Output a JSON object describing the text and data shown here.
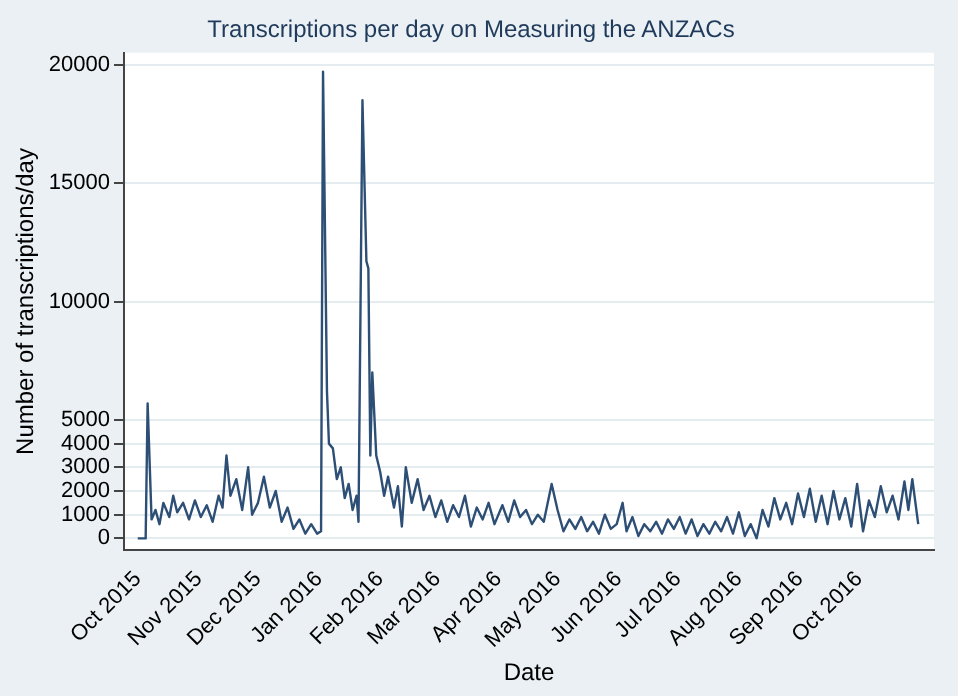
{
  "chart_data": {
    "type": "line",
    "title": "Transcriptions per day on Measuring the ANZACs",
    "xlabel": "Date",
    "ylabel": "Number of transcriptions/day",
    "x": [
      "2015-10-01",
      "2015-10-05",
      "2015-10-06",
      "2015-10-08",
      "2015-10-10",
      "2015-10-12",
      "2015-10-14",
      "2015-10-17",
      "2015-10-19",
      "2015-10-21",
      "2015-10-24",
      "2015-10-27",
      "2015-10-30",
      "2015-11-02",
      "2015-11-05",
      "2015-11-08",
      "2015-11-11",
      "2015-11-13",
      "2015-11-15",
      "2015-11-17",
      "2015-11-20",
      "2015-11-23",
      "2015-11-26",
      "2015-11-28",
      "2015-12-01",
      "2015-12-04",
      "2015-12-07",
      "2015-12-10",
      "2015-12-13",
      "2015-12-16",
      "2015-12-19",
      "2015-12-22",
      "2015-12-25",
      "2015-12-28",
      "2015-12-31",
      "2016-01-02",
      "2016-01-03",
      "2016-01-05",
      "2016-01-06",
      "2016-01-08",
      "2016-01-10",
      "2016-01-12",
      "2016-01-14",
      "2016-01-16",
      "2016-01-18",
      "2016-01-20",
      "2016-01-21",
      "2016-01-23",
      "2016-01-25",
      "2016-01-26",
      "2016-01-27",
      "2016-01-28",
      "2016-01-30",
      "2016-02-01",
      "2016-02-03",
      "2016-02-05",
      "2016-02-08",
      "2016-02-10",
      "2016-02-12",
      "2016-02-14",
      "2016-02-17",
      "2016-02-20",
      "2016-02-23",
      "2016-02-26",
      "2016-02-29",
      "2016-03-03",
      "2016-03-06",
      "2016-03-09",
      "2016-03-12",
      "2016-03-15",
      "2016-03-18",
      "2016-03-21",
      "2016-03-24",
      "2016-03-27",
      "2016-03-30",
      "2016-04-03",
      "2016-04-06",
      "2016-04-09",
      "2016-04-12",
      "2016-04-15",
      "2016-04-18",
      "2016-04-21",
      "2016-04-24",
      "2016-04-28",
      "2016-05-01",
      "2016-05-04",
      "2016-05-07",
      "2016-05-10",
      "2016-05-13",
      "2016-05-16",
      "2016-05-19",
      "2016-05-22",
      "2016-05-25",
      "2016-05-28",
      "2016-05-31",
      "2016-06-03",
      "2016-06-05",
      "2016-06-08",
      "2016-06-11",
      "2016-06-14",
      "2016-06-17",
      "2016-06-20",
      "2016-06-23",
      "2016-06-26",
      "2016-06-29",
      "2016-07-02",
      "2016-07-05",
      "2016-07-08",
      "2016-07-11",
      "2016-07-14",
      "2016-07-17",
      "2016-07-20",
      "2016-07-23",
      "2016-07-26",
      "2016-07-29",
      "2016-08-01",
      "2016-08-04",
      "2016-08-07",
      "2016-08-10",
      "2016-08-13",
      "2016-08-16",
      "2016-08-19",
      "2016-08-22",
      "2016-08-25",
      "2016-08-28",
      "2016-08-31",
      "2016-09-03",
      "2016-09-06",
      "2016-09-09",
      "2016-09-12",
      "2016-09-15",
      "2016-09-18",
      "2016-09-21",
      "2016-09-24",
      "2016-09-27",
      "2016-09-30",
      "2016-10-03",
      "2016-10-06",
      "2016-10-09",
      "2016-10-12",
      "2016-10-15",
      "2016-10-18",
      "2016-10-21",
      "2016-10-24",
      "2016-10-26",
      "2016-10-28",
      "2016-10-31"
    ],
    "series": [
      {
        "color": "#2d4e75",
        "values": [
          0,
          0,
          5700,
          800,
          1200,
          600,
          1500,
          900,
          1800,
          1100,
          1500,
          800,
          1600,
          900,
          1400,
          700,
          1800,
          1300,
          3500,
          1800,
          2500,
          1200,
          3000,
          1000,
          1500,
          2600,
          1300,
          2000,
          700,
          1300,
          400,
          800,
          200,
          600,
          200,
          300,
          19700,
          6200,
          4000,
          3800,
          2500,
          3000,
          1700,
          2300,
          1200,
          1800,
          700,
          18500,
          11700,
          11400,
          3500,
          7000,
          3500,
          2800,
          1800,
          2600,
          1300,
          2200,
          500,
          3000,
          1500,
          2500,
          1200,
          1800,
          900,
          1600,
          700,
          1400,
          900,
          1800,
          500,
          1300,
          800,
          1500,
          600,
          1400,
          700,
          1600,
          900,
          1200,
          600,
          1000,
          700,
          2300,
          1200,
          300,
          800,
          400,
          900,
          300,
          700,
          200,
          1000,
          400,
          600,
          1500,
          300,
          900,
          100,
          600,
          300,
          700,
          200,
          800,
          400,
          900,
          200,
          800,
          100,
          600,
          200,
          700,
          300,
          900,
          200,
          1100,
          100,
          600,
          0,
          1200,
          500,
          1700,
          800,
          1500,
          600,
          1900,
          900,
          2100,
          700,
          1800,
          600,
          2000,
          800,
          1700,
          500,
          2300,
          300,
          1600,
          900,
          2200,
          1100,
          1800,
          800,
          2400,
          1200,
          2500,
          600
        ]
      }
    ],
    "xlim": [
      "2015-09-24",
      "2016-11-08"
    ],
    "xticks": [
      {
        "value": "2015-10-01",
        "label": "Oct 2015"
      },
      {
        "value": "2015-11-01",
        "label": "Nov 2015"
      },
      {
        "value": "2015-12-01",
        "label": "Dec 2015"
      },
      {
        "value": "2016-01-01",
        "label": "Jan 2016"
      },
      {
        "value": "2016-02-01",
        "label": "Feb 2016"
      },
      {
        "value": "2016-03-01",
        "label": "Mar 2016"
      },
      {
        "value": "2016-04-01",
        "label": "Apr 2016"
      },
      {
        "value": "2016-05-01",
        "label": "May 2016"
      },
      {
        "value": "2016-06-01",
        "label": "Jun 2016"
      },
      {
        "value": "2016-07-01",
        "label": "Jul 2016"
      },
      {
        "value": "2016-08-01",
        "label": "Aug 2016"
      },
      {
        "value": "2016-09-01",
        "label": "Sep 2016"
      },
      {
        "value": "2016-10-01",
        "label": "Oct 2016"
      }
    ],
    "ylim": [
      -500,
      20500
    ],
    "yticks": [
      0,
      1000,
      2000,
      3000,
      4000,
      5000,
      10000,
      15000,
      20000
    ],
    "grid": "y",
    "legend": false,
    "marker": "none",
    "line_style": "solid"
  }
}
